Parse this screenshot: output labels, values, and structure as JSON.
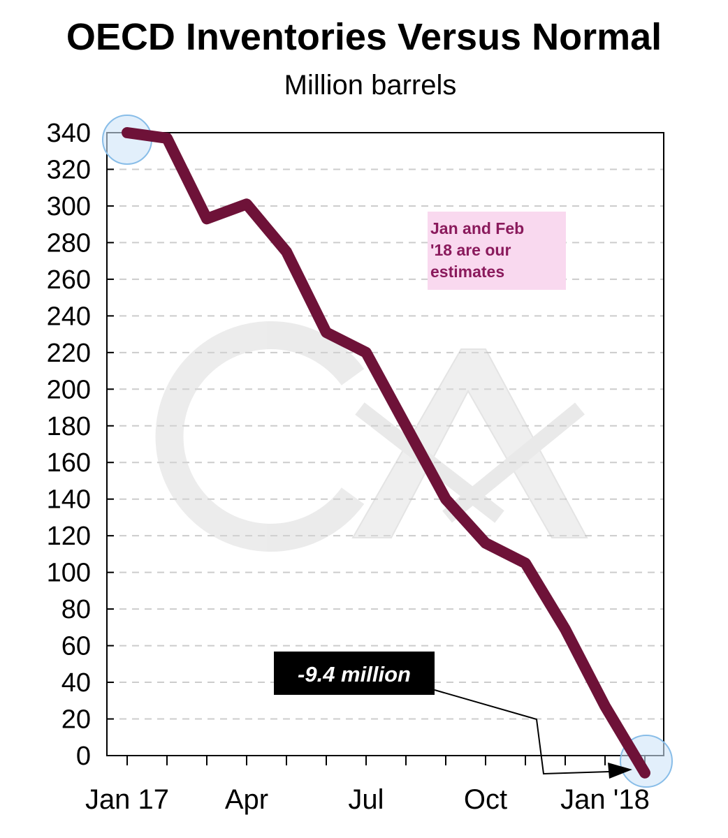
{
  "chart_data": {
    "type": "line",
    "title": "OECD Inventories Versus Normal",
    "subtitle": "Million barrels",
    "xlabel": "",
    "ylabel": "",
    "ylim": [
      0,
      340
    ],
    "yticks": [
      0,
      20,
      40,
      60,
      80,
      100,
      120,
      140,
      160,
      180,
      200,
      220,
      240,
      260,
      280,
      300,
      320,
      340
    ],
    "xticks": [
      "Jan 17",
      "Apr",
      "Jul",
      "Oct",
      "Jan '18"
    ],
    "x": [
      "Jan 17",
      "Feb 17",
      "Mar 17",
      "Apr 17",
      "May 17",
      "Jun 17",
      "Jul 17",
      "Aug 17",
      "Sep 17",
      "Oct 17",
      "Nov 17",
      "Dec 17",
      "Jan 18",
      "Feb 18"
    ],
    "series": [
      {
        "values": [
          340,
          337,
          293,
          301,
          275,
          231,
          220,
          180,
          140,
          116,
          105,
          69,
          27,
          -9.4
        ]
      }
    ],
    "grid": "horizontal dashed",
    "annotations": [
      {
        "text_lines": [
          "Jan and Feb",
          "'18 are  our",
          "estimates"
        ]
      },
      {
        "text": "-9.4 million"
      }
    ],
    "colors": {
      "line": "#6e1238",
      "annotation_text": "#8a1a5c",
      "annotation_bg": "#f9d9ef",
      "callout_bg": "#000000",
      "highlight": "#cfe5f8"
    }
  }
}
